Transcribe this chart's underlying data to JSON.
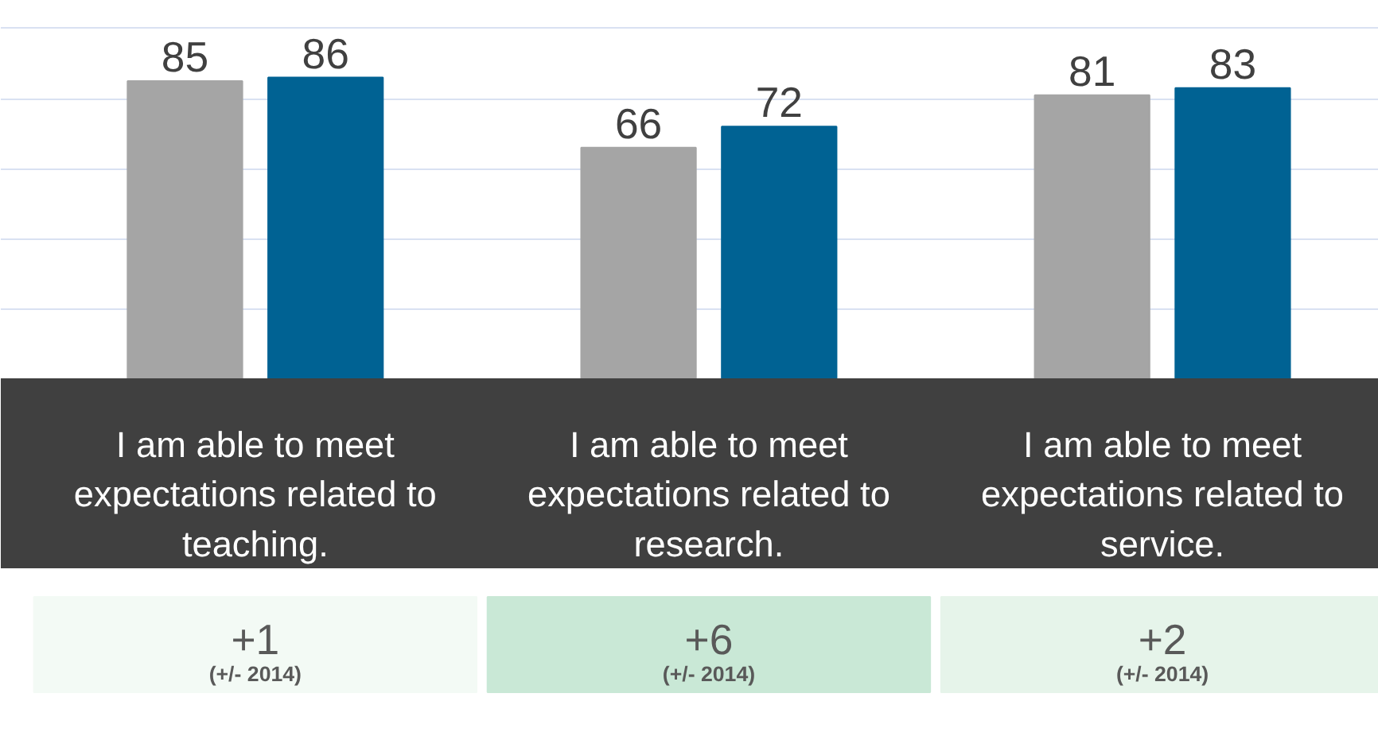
{
  "chart_data": {
    "type": "bar",
    "categories": [
      "I am able to meet expectations related to teaching.",
      "I am able to meet expectations related to research.",
      "I am able to meet expectations related to service."
    ],
    "series": [
      {
        "color": "#a5a5a5",
        "values": [
          85,
          66,
          81
        ]
      },
      {
        "color": "#006293",
        "values": [
          86,
          72,
          83
        ]
      }
    ],
    "yticks": [
      {
        "value": 20,
        "label": null
      },
      {
        "value": 40,
        "label": null
      },
      {
        "value": 60,
        "label": null
      },
      {
        "value": 80,
        "label": null
      },
      {
        "value": 100,
        "label": null
      }
    ],
    "grid": "y",
    "tick_labels": "x",
    "data_labels": true,
    "annotations": [
      "+1",
      "(+/- 2014)",
      "+6",
      "(+/- 2014)",
      "+2",
      "(+/- 2014)"
    ]
  }
}
